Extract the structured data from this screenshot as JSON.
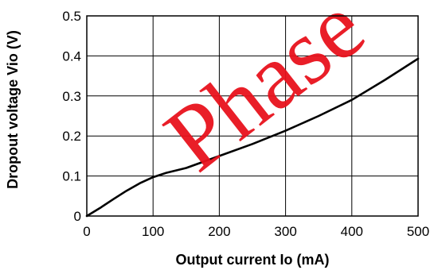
{
  "chart_data": {
    "type": "line",
    "title": "",
    "xlabel": "Output current Io (mA)",
    "ylabel": "Dropout voltage Vio (V)",
    "xlim": [
      0,
      500
    ],
    "ylim": [
      0,
      0.5
    ],
    "x_ticks": [
      0,
      100,
      200,
      300,
      400,
      500
    ],
    "y_ticks": [
      0,
      0.1,
      0.2,
      0.3,
      0.4,
      0.5
    ],
    "x_tick_labels": [
      "0",
      "100",
      "200",
      "300",
      "400",
      "500"
    ],
    "y_tick_labels": [
      "0",
      "0.1",
      "0.2",
      "0.3",
      "0.4",
      "0.5"
    ],
    "grid": true,
    "legend": "none",
    "series": [
      {
        "x": [
          0,
          20,
          40,
          60,
          80,
          100,
          120,
          150,
          200,
          250,
          300,
          350,
          400,
          450,
          500
        ],
        "y": [
          0,
          0.02,
          0.042,
          0.063,
          0.082,
          0.097,
          0.108,
          0.12,
          0.15,
          0.18,
          0.213,
          0.25,
          0.29,
          0.34,
          0.393
        ]
      }
    ],
    "line_color": "#000000"
  },
  "watermark": {
    "text": "Phase",
    "color": "#e8121c"
  }
}
